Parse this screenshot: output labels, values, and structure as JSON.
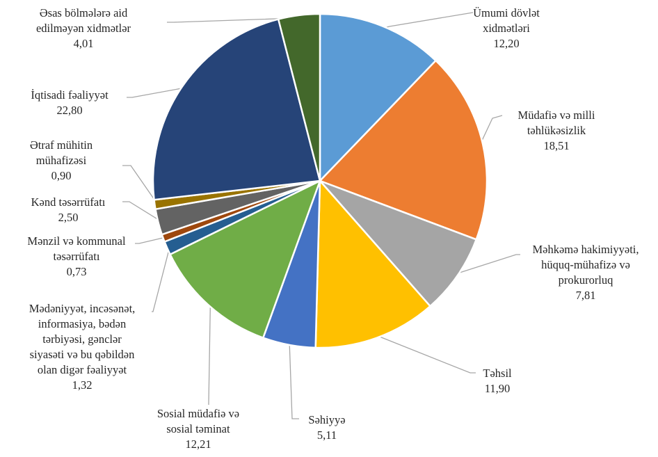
{
  "chart_data": {
    "type": "pie",
    "title": "",
    "slices": [
      {
        "label": [
          "Ümumi dövlət",
          "xidmətləri"
        ],
        "value": 12.2,
        "value_label": "12,20",
        "color": "#5b9bd5"
      },
      {
        "label": [
          "Müdafiə və milli",
          "təhlükəsizlik"
        ],
        "value": 18.51,
        "value_label": "18,51",
        "color": "#ed7d31"
      },
      {
        "label": [
          "Məhkəmə hakimiyyəti,",
          "hüquq-mühafizə və",
          "prokurorluq"
        ],
        "value": 7.81,
        "value_label": "7,81",
        "color": "#a5a5a5"
      },
      {
        "label": [
          "Təhsil"
        ],
        "value": 11.9,
        "value_label": "11,90",
        "color": "#ffc000"
      },
      {
        "label": [
          "Səhiyyə"
        ],
        "value": 5.11,
        "value_label": "5,11",
        "color": "#4472c4"
      },
      {
        "label": [
          "Sosial müdafiə və",
          "sosial təminat"
        ],
        "value": 12.21,
        "value_label": "12,21",
        "color": "#70ad47"
      },
      {
        "label": [
          "Mədəniyyət, incəsənət,",
          "informasiya, bədən",
          "tərbiyəsi, gənclər",
          "siyasəti və bu qəbildən",
          "olan digər fəaliyyət"
        ],
        "value": 1.32,
        "value_label": "1,32",
        "color": "#255e91"
      },
      {
        "label": [
          "Mənzil və kommunal",
          "təsərrüfatı"
        ],
        "value": 0.73,
        "value_label": "0,73",
        "color": "#9e480e"
      },
      {
        "label": [
          "Kənd təsərrüfatı"
        ],
        "value": 2.5,
        "value_label": "2,50",
        "color": "#636363"
      },
      {
        "label": [
          "Ətraf mühitin",
          "mühafizəsi"
        ],
        "value": 0.9,
        "value_label": "0,90",
        "color": "#997300"
      },
      {
        "label": [
          "İqtisadi fəaliyyət"
        ],
        "value": 22.8,
        "value_label": "22,80",
        "color": "#264478"
      },
      {
        "label": [
          "Əsas bölmələrə aid",
          "edilməyən xidmətlər"
        ],
        "value": 4.01,
        "value_label": "4,01",
        "color": "#43682b"
      }
    ]
  }
}
